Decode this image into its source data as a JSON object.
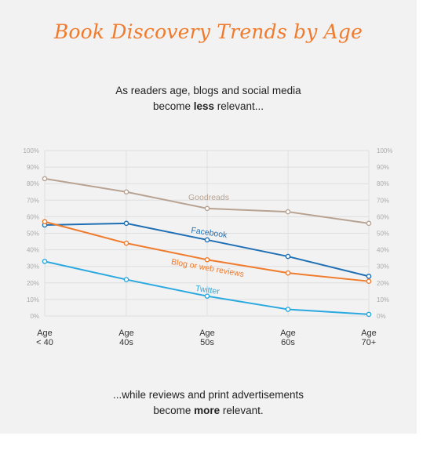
{
  "title": "Book Discovery Trends by Age",
  "caption_top": {
    "line1": "As readers age, blogs and social media",
    "line2_pre": "become ",
    "line2_bold": "less",
    "line2_post": " relevant..."
  },
  "caption_bottom": {
    "line1": "...while reviews and print advertisements",
    "line2_pre": "become ",
    "line2_bold": "more",
    "line2_post": " relevant."
  },
  "chart_data": {
    "type": "line",
    "categories": [
      [
        "Age",
        "< 40"
      ],
      [
        "Age",
        "40s"
      ],
      [
        "Age",
        "50s"
      ],
      [
        "Age",
        "60s"
      ],
      [
        "Age",
        "70+"
      ]
    ],
    "ylim": [
      0,
      100
    ],
    "yticks": [
      "0%",
      "10%",
      "20%",
      "30%",
      "40%",
      "50%",
      "60%",
      "70%",
      "80%",
      "90%",
      "100%"
    ],
    "grid": true,
    "series": [
      {
        "name": "Goodreads",
        "color": "#b8a393",
        "values": [
          83,
          75,
          65,
          63,
          56
        ]
      },
      {
        "name": "Facebook",
        "color": "#1f6fb5",
        "values": [
          55,
          56,
          46,
          36,
          24
        ]
      },
      {
        "name": "Blog or web reviews",
        "color": "#f07b2c",
        "values": [
          57,
          44,
          34,
          26,
          21
        ]
      },
      {
        "name": "Twitter",
        "color": "#2aa8e0",
        "values": [
          33,
          22,
          12,
          4,
          1
        ]
      }
    ]
  }
}
